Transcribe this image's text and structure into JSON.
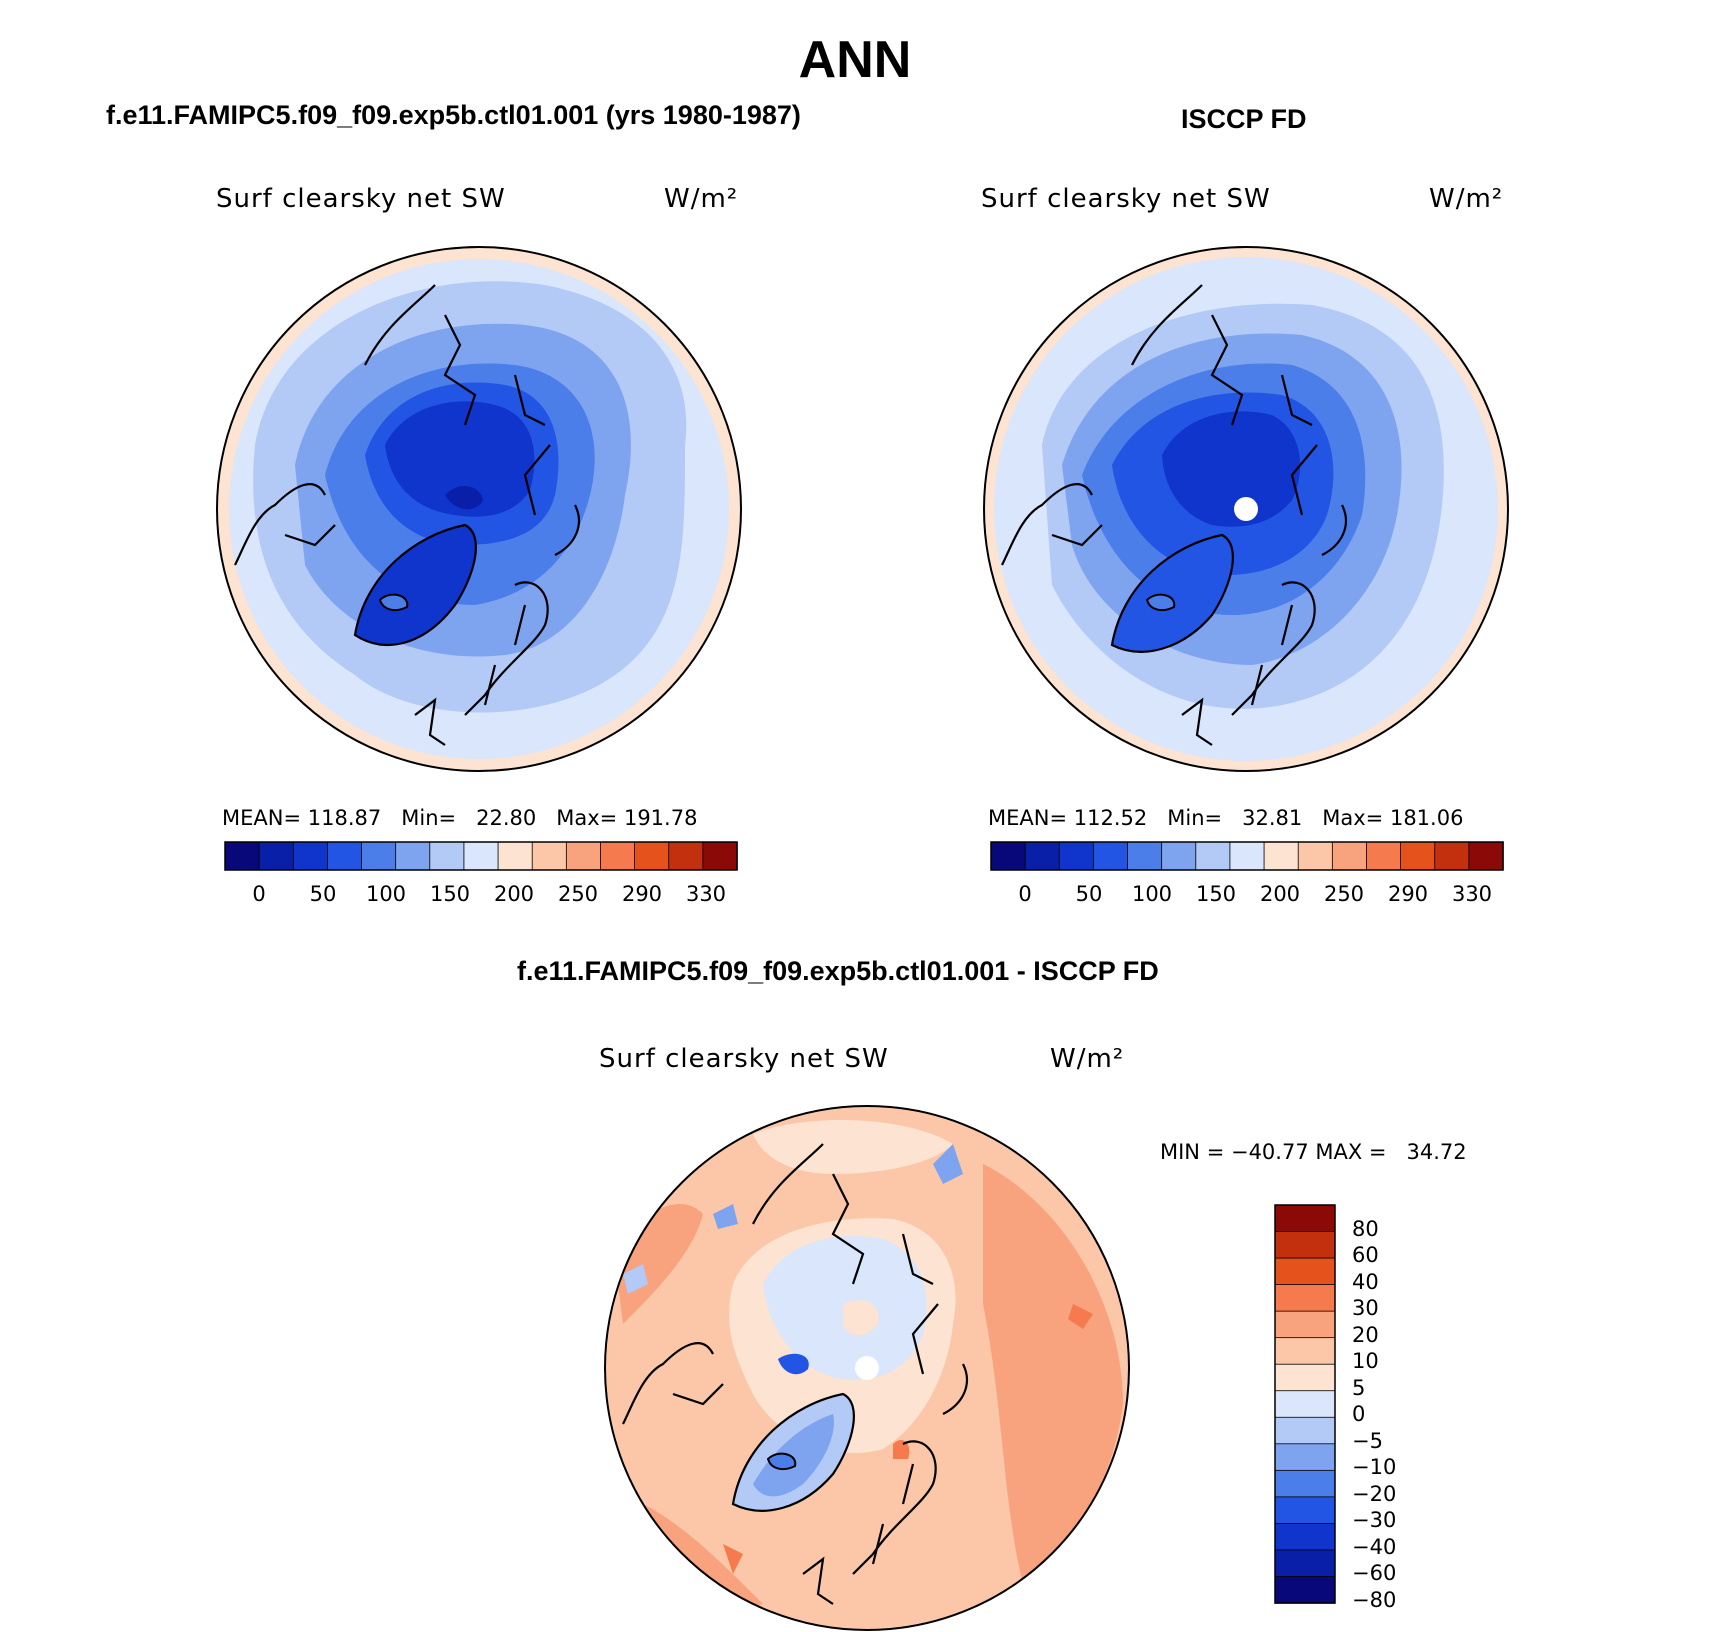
{
  "figure": {
    "title": "ANN",
    "panels": [
      {
        "heading": "f.e11.FAMIPC5.f09_f09.exp5b.ctl01.001 (yrs 1980-1987)",
        "variable": "Surf clearsky net SW",
        "units": "W/m²",
        "stats": "MEAN= 118.87   Min=   22.80   Max= 191.78",
        "colorbar_ticks": [
          "0",
          "50",
          "100",
          "150",
          "200",
          "250",
          "290",
          "330"
        ]
      },
      {
        "heading": "ISCCP FD",
        "variable": "Surf clearsky net SW",
        "units": "W/m²",
        "stats": "MEAN= 112.52   Min=   32.81   Max= 181.06",
        "colorbar_ticks": [
          "0",
          "50",
          "100",
          "150",
          "200",
          "250",
          "290",
          "330"
        ]
      },
      {
        "heading": "f.e11.FAMIPC5.f09_f09.exp5b.ctl01.001 - ISCCP FD",
        "variable": "Surf clearsky net SW",
        "units": "W/m²",
        "stats": "MIN = −40.77 MAX =   34.72",
        "colorbar_ticks": [
          "80",
          "60",
          "40",
          "30",
          "20",
          "10",
          "5",
          "0",
          "−5",
          "−10",
          "−20",
          "−30",
          "−40",
          "−60",
          "−80"
        ]
      }
    ]
  },
  "colors": {
    "abs_scale": [
      "#08087a",
      "#0a1fa8",
      "#0f35cc",
      "#2255e3",
      "#4c7ee9",
      "#7ea4f0",
      "#b3c9f6",
      "#d9e6fb",
      "#fde3d1",
      "#fbc7a8",
      "#f9a27e",
      "#f57b4e",
      "#e6521c",
      "#c2300d",
      "#8b0a08"
    ],
    "diff_scale_top_to_bottom": [
      "#8b0a08",
      "#c2300d",
      "#e6521c",
      "#f57b4e",
      "#f9a27e",
      "#fbc7a8",
      "#fde3d1",
      "#d9e6fb",
      "#b3c9f6",
      "#7ea4f0",
      "#4c7ee9",
      "#2255e3",
      "#0f35cc",
      "#0a1fa8",
      "#08087a"
    ]
  }
}
